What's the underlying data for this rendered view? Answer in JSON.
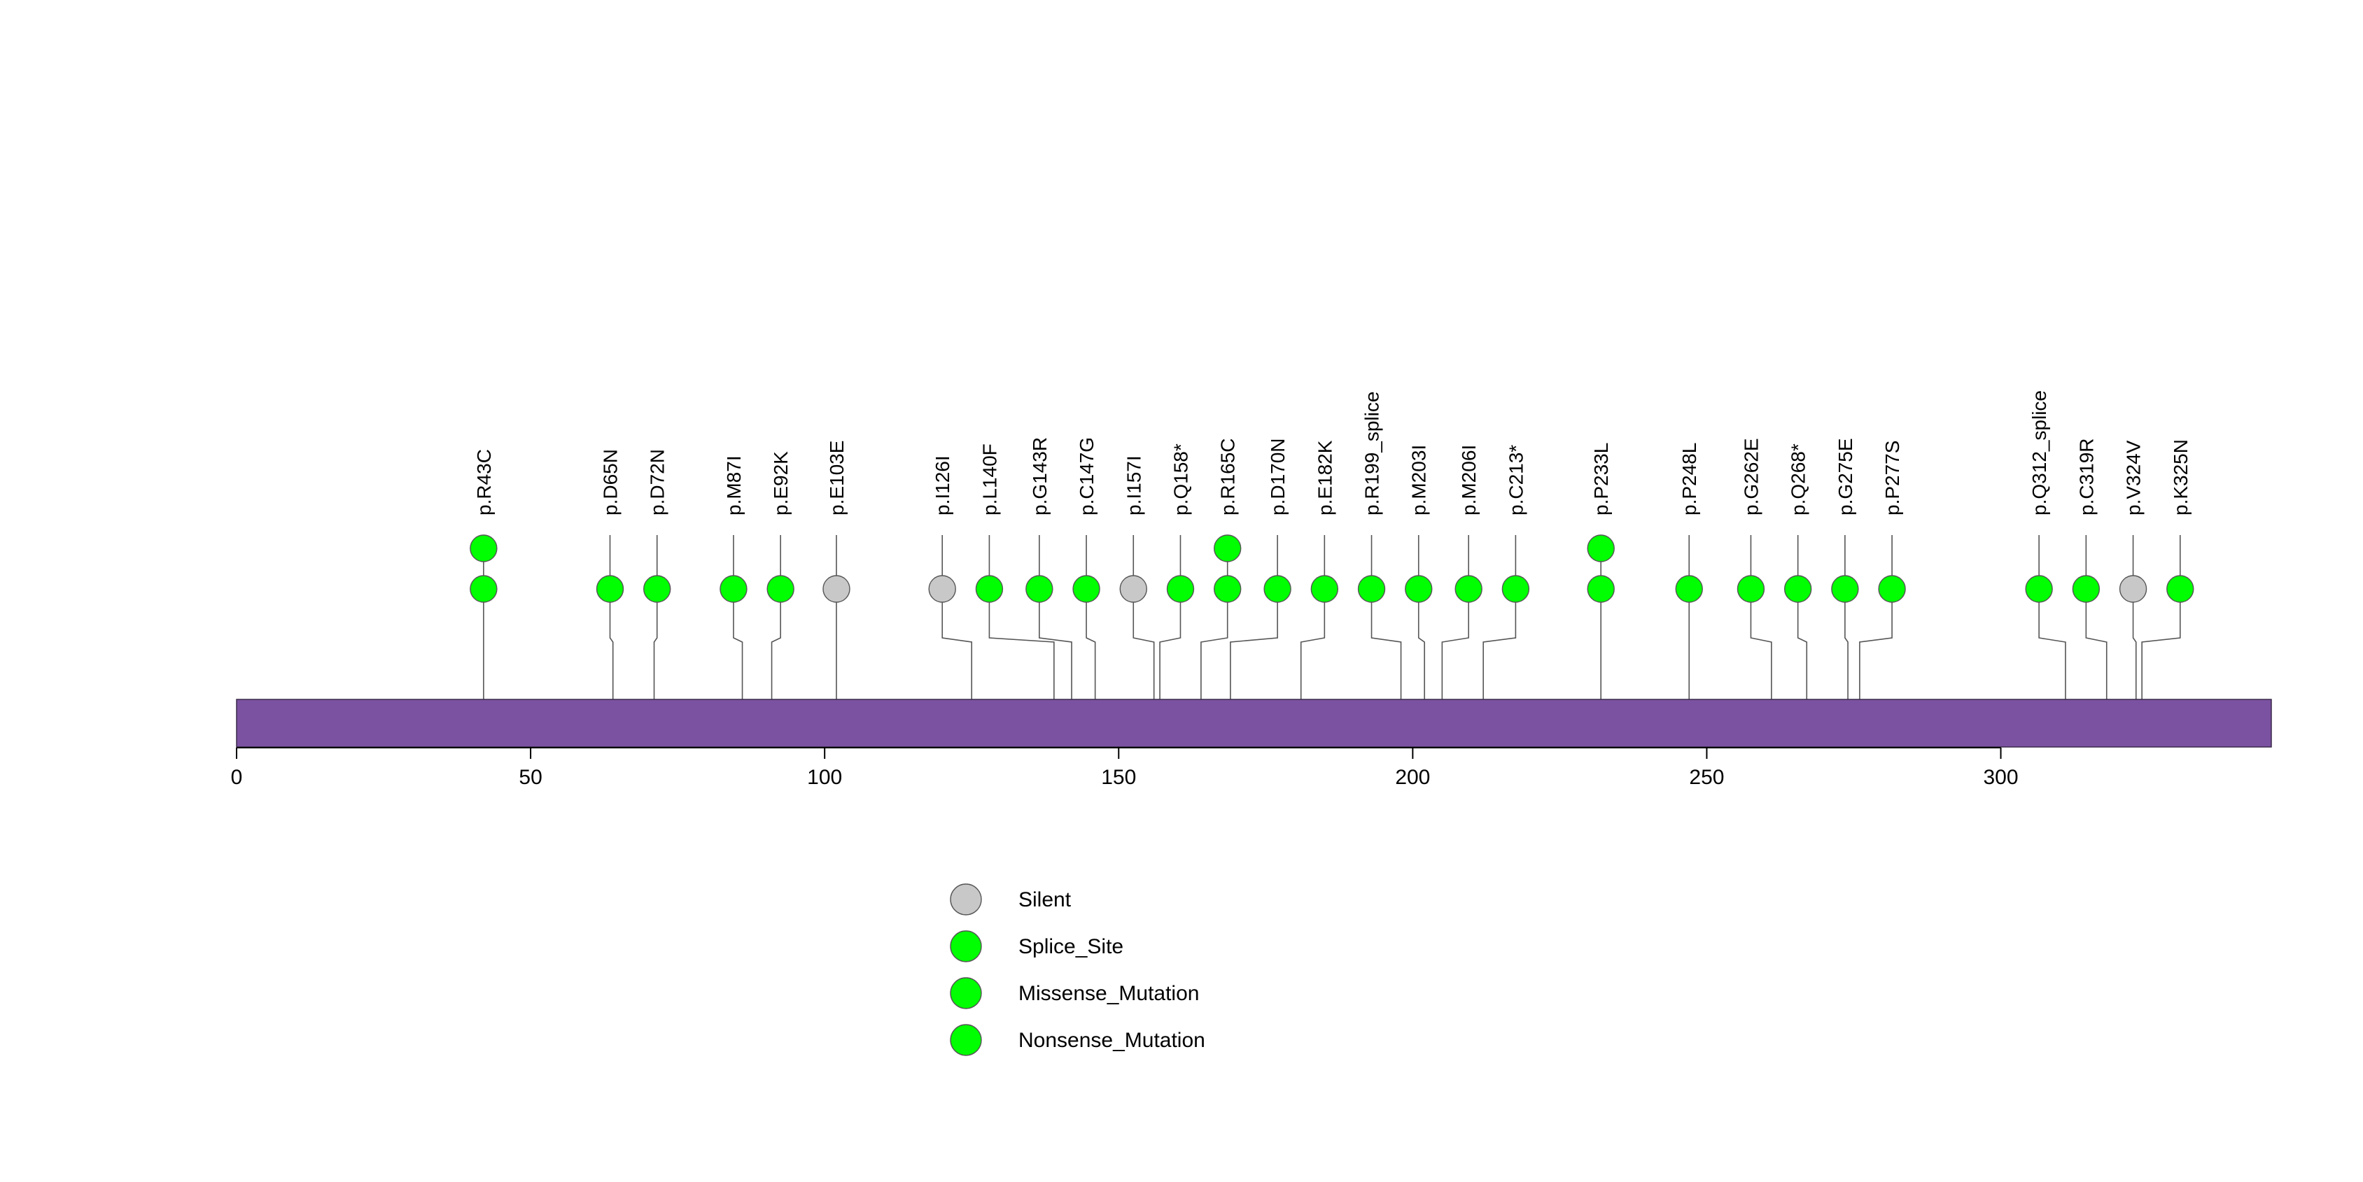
{
  "colors": {
    "protein_bar": "#7b52a1",
    "protein_bar_stroke": "#3a2a4a",
    "Silent": "#c8c8c8",
    "Splice_Site": "#00ff00",
    "Missense_Mutation": "#00ff00",
    "Nonsense_Mutation": "#00ff00",
    "stroke": "#555555"
  },
  "chart_data": {
    "type": "lollipop",
    "title": "",
    "xlabel": "",
    "ylabel": "",
    "xlim": [
      0,
      346
    ],
    "xticks": [
      0,
      50,
      100,
      150,
      200,
      250,
      300
    ],
    "protein_length": 346,
    "mutations": [
      {
        "label": "p.R43C",
        "position": 42,
        "display_position": 42,
        "count": 2,
        "type": "Missense_Mutation"
      },
      {
        "label": "p.D65N",
        "position": 64,
        "display_position": 63.5,
        "count": 1,
        "type": "Missense_Mutation"
      },
      {
        "label": "p.D72N",
        "position": 71,
        "display_position": 71.5,
        "count": 1,
        "type": "Missense_Mutation"
      },
      {
        "label": "p.M87I",
        "position": 86,
        "display_position": 84.5,
        "count": 1,
        "type": "Missense_Mutation"
      },
      {
        "label": "p.E92K",
        "position": 91,
        "display_position": 92.5,
        "count": 1,
        "type": "Missense_Mutation"
      },
      {
        "label": "p.E103E",
        "position": 102,
        "display_position": 102,
        "count": 1,
        "type": "Silent"
      },
      {
        "label": "p.I126I",
        "position": 125,
        "display_position": 120,
        "count": 1,
        "type": "Silent"
      },
      {
        "label": "p.L140F",
        "position": 139,
        "display_position": 128,
        "count": 1,
        "type": "Missense_Mutation"
      },
      {
        "label": "p.G143R",
        "position": 142,
        "display_position": 136.5,
        "count": 1,
        "type": "Missense_Mutation"
      },
      {
        "label": "p.C147G",
        "position": 146,
        "display_position": 144.5,
        "count": 1,
        "type": "Missense_Mutation"
      },
      {
        "label": "p.I157I",
        "position": 156,
        "display_position": 152.5,
        "count": 1,
        "type": "Silent"
      },
      {
        "label": "p.Q158*",
        "position": 157,
        "display_position": 160.5,
        "count": 1,
        "type": "Nonsense_Mutation"
      },
      {
        "label": "p.R165C",
        "position": 164,
        "display_position": 168.5,
        "count": 2,
        "type": "Missense_Mutation"
      },
      {
        "label": "p.D170N",
        "position": 169,
        "display_position": 177,
        "count": 1,
        "type": "Missense_Mutation"
      },
      {
        "label": "p.E182K",
        "position": 181,
        "display_position": 185,
        "count": 1,
        "type": "Missense_Mutation"
      },
      {
        "label": "p.R199_splice",
        "position": 198,
        "display_position": 193,
        "count": 1,
        "type": "Splice_Site"
      },
      {
        "label": "p.M203I",
        "position": 202,
        "display_position": 201,
        "count": 1,
        "type": "Missense_Mutation"
      },
      {
        "label": "p.M206I",
        "position": 205,
        "display_position": 209.5,
        "count": 1,
        "type": "Missense_Mutation"
      },
      {
        "label": "p.C213*",
        "position": 212,
        "display_position": 217.5,
        "count": 1,
        "type": "Nonsense_Mutation"
      },
      {
        "label": "p.P233L",
        "position": 232,
        "display_position": 232,
        "count": 2,
        "type": "Missense_Mutation"
      },
      {
        "label": "p.P248L",
        "position": 247,
        "display_position": 247,
        "count": 1,
        "type": "Missense_Mutation"
      },
      {
        "label": "p.G262E",
        "position": 261,
        "display_position": 257.5,
        "count": 1,
        "type": "Missense_Mutation"
      },
      {
        "label": "p.Q268*",
        "position": 267,
        "display_position": 265.5,
        "count": 1,
        "type": "Nonsense_Mutation"
      },
      {
        "label": "p.G275E",
        "position": 274,
        "display_position": 273.5,
        "count": 1,
        "type": "Missense_Mutation"
      },
      {
        "label": "p.P277S",
        "position": 276,
        "display_position": 281.5,
        "count": 1,
        "type": "Missense_Mutation"
      },
      {
        "label": "p.Q312_splice",
        "position": 311,
        "display_position": 306.5,
        "count": 1,
        "type": "Splice_Site"
      },
      {
        "label": "p.C319R",
        "position": 318,
        "display_position": 314.5,
        "count": 1,
        "type": "Missense_Mutation"
      },
      {
        "label": "p.V324V",
        "position": 323,
        "display_position": 322.5,
        "count": 1,
        "type": "Silent"
      },
      {
        "label": "p.K325N",
        "position": 324,
        "display_position": 330.5,
        "count": 1,
        "type": "Missense_Mutation"
      }
    ],
    "legend": [
      {
        "label": "Silent",
        "type": "Silent"
      },
      {
        "label": "Splice_Site",
        "type": "Splice_Site"
      },
      {
        "label": "Missense_Mutation",
        "type": "Missense_Mutation"
      },
      {
        "label": "Nonsense_Mutation",
        "type": "Nonsense_Mutation"
      }
    ],
    "legend_placement": "bottom-center"
  }
}
